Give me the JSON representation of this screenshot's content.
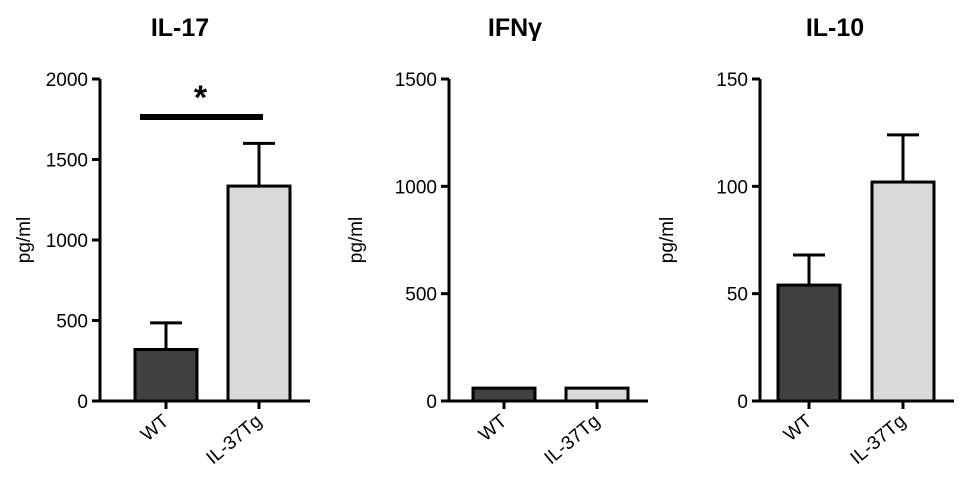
{
  "chart_data": [
    {
      "type": "bar",
      "title": "IL-17",
      "ylabel": "pg/ml",
      "categories": [
        "WT",
        "IL-37Tg"
      ],
      "values": [
        320,
        1335
      ],
      "errors": [
        165,
        265
      ],
      "ylim": [
        0,
        2000
      ],
      "yticks": [
        "0",
        "500",
        "1000",
        "1500",
        "2000"
      ],
      "ytick_values": [
        0,
        500,
        1000,
        1500,
        2000
      ],
      "bar_colors": [
        "#404040",
        "#d9d9d9"
      ],
      "significance": {
        "label": "*",
        "between": [
          "WT",
          "IL-37Tg"
        ]
      }
    },
    {
      "type": "bar",
      "title": "IFNγ",
      "ylabel": "pg/ml",
      "categories": [
        "WT",
        "IL-37Tg"
      ],
      "values": [
        60,
        60
      ],
      "errors": [
        0,
        0
      ],
      "ylim": [
        0,
        1500
      ],
      "yticks": [
        "0",
        "500",
        "1000",
        "1500"
      ],
      "ytick_values": [
        0,
        500,
        1000,
        1500
      ],
      "bar_colors": [
        "#404040",
        "#d9d9d9"
      ]
    },
    {
      "type": "bar",
      "title": "IL-10",
      "ylabel": "pg/ml",
      "categories": [
        "WT",
        "IL-37Tg"
      ],
      "values": [
        54,
        102
      ],
      "errors": [
        14,
        22
      ],
      "ylim": [
        0,
        150
      ],
      "yticks": [
        "0",
        "50",
        "100",
        "150"
      ],
      "ytick_values": [
        0,
        50,
        100,
        150
      ],
      "bar_colors": [
        "#404040",
        "#d9d9d9"
      ]
    }
  ]
}
